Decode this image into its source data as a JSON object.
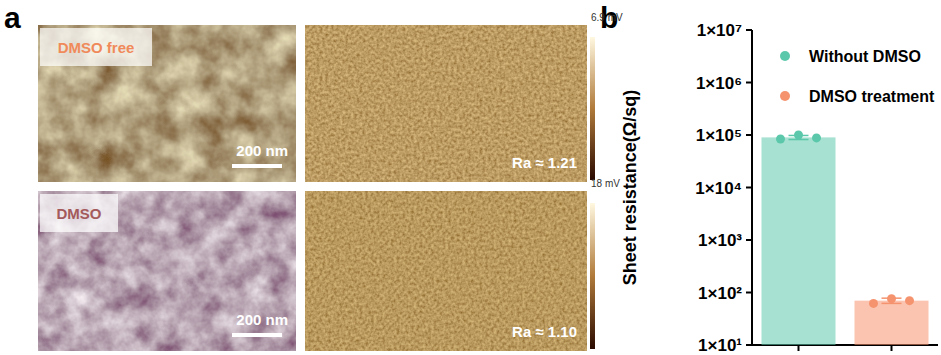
{
  "panel_labels": [
    "a",
    "b"
  ],
  "panel_a": {
    "images": [
      {
        "label": "DMSO free",
        "scale_bar": "200 nm"
      },
      {
        "roughness": "Ra ≈ 1.21",
        "colorbar_max": "6.9 mV"
      },
      {
        "label": "DMSO",
        "scale_bar": "200 nm"
      },
      {
        "roughness": "Ra ≈ 1.10",
        "colorbar_max": "18 mV"
      }
    ]
  },
  "chart_data": {
    "type": "bar",
    "y_label": "Sheet resistance(Ω/sq)",
    "categories": [
      null,
      null
    ],
    "log": "y",
    "ylim": [
      10,
      10000000
    ],
    "yticks": [
      {
        "value": 10,
        "label": "1×10¹"
      },
      {
        "value": 100,
        "label": "1×10²"
      },
      {
        "value": 1000,
        "label": "1×10³"
      },
      {
        "value": 10000,
        "label": "1×10⁴"
      },
      {
        "value": 100000,
        "label": "1×10⁵"
      },
      {
        "value": 1000000,
        "label": "1×10⁶"
      },
      {
        "value": 10000000,
        "label": "1×10⁷"
      }
    ],
    "tick_labels": "y",
    "legend": "top",
    "series": [
      {
        "name": "Without DMSO",
        "color": "#5cc8ab",
        "values": [
          90000,
          null
        ],
        "errors": [
          8000,
          null
        ],
        "points": [
          [
            84000,
            100000,
            88000
          ],
          null
        ]
      },
      {
        "name": "DMSO treatment",
        "color": "#f5936f",
        "values": [
          null,
          70
        ],
        "errors": [
          null,
          8
        ],
        "points": [
          null,
          [
            62,
            76,
            70
          ]
        ]
      }
    ]
  }
}
